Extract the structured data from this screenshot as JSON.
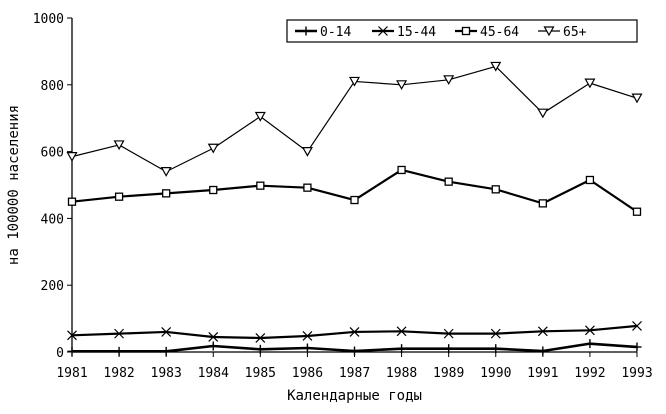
{
  "chart_data": {
    "type": "line",
    "title": "",
    "xlabel": "Календарные годы",
    "ylabel": "на 100000 населения",
    "categories": [
      "1981",
      "1982",
      "1983",
      "1984",
      "1985",
      "1986",
      "1987",
      "1988",
      "1989",
      "1990",
      "1991",
      "1992",
      "1993"
    ],
    "ylim": [
      0,
      1000
    ],
    "yticks": [
      "0",
      "200",
      "400",
      "600",
      "800",
      "1000"
    ],
    "grid": false,
    "legend_position": "top-right",
    "series": [
      {
        "name": "0-14",
        "marker": "plus",
        "color": "#000000",
        "values": [
          2,
          2,
          2,
          18,
          8,
          12,
          3,
          10,
          10,
          10,
          3,
          25,
          15
        ]
      },
      {
        "name": "15-44",
        "marker": "x",
        "color": "#000000",
        "values": [
          50,
          55,
          60,
          45,
          42,
          48,
          60,
          62,
          55,
          55,
          62,
          65,
          78
        ]
      },
      {
        "name": "45-64",
        "marker": "square",
        "color": "#000000",
        "values": [
          450,
          465,
          475,
          485,
          498,
          492,
          455,
          545,
          510,
          487,
          445,
          515,
          420
        ]
      },
      {
        "name": "65+",
        "marker": "triangle-down",
        "color": "#000000",
        "values": [
          585,
          620,
          540,
          610,
          705,
          600,
          810,
          800,
          815,
          855,
          715,
          805,
          760
        ]
      }
    ]
  }
}
